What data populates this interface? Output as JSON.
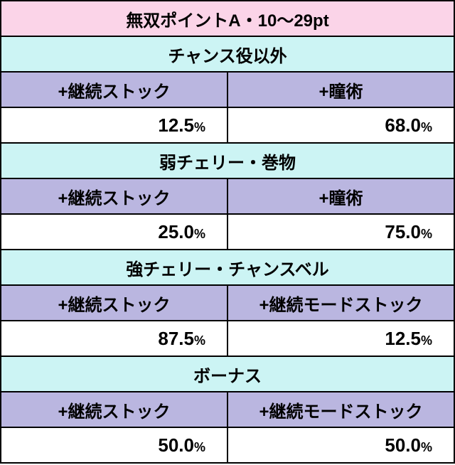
{
  "title": "無双ポイントA・10～29pt",
  "sections": [
    {
      "name": "チャンス役以外",
      "headers": [
        "+継続ストック",
        "+瞳術"
      ],
      "values": [
        "12.5",
        "68.0"
      ]
    },
    {
      "name": "弱チェリー・巻物",
      "headers": [
        "+継続ストック",
        "+瞳術"
      ],
      "values": [
        "25.0",
        "75.0"
      ]
    },
    {
      "name": "強チェリー・チャンスベル",
      "headers": [
        "+継続ストック",
        "+継続モードストック"
      ],
      "values": [
        "87.5",
        "12.5"
      ]
    },
    {
      "name": "ボーナス",
      "headers": [
        "+継続ストック",
        "+継続モードストック"
      ],
      "values": [
        "50.0",
        "50.0"
      ]
    }
  ],
  "percent_label": "%",
  "colors": {
    "title_bg": "#fbd4e8",
    "section_bg": "#ccf4f4",
    "header_bg": "#bab6e0",
    "data_bg": "#ffffff",
    "border": "#000000"
  }
}
